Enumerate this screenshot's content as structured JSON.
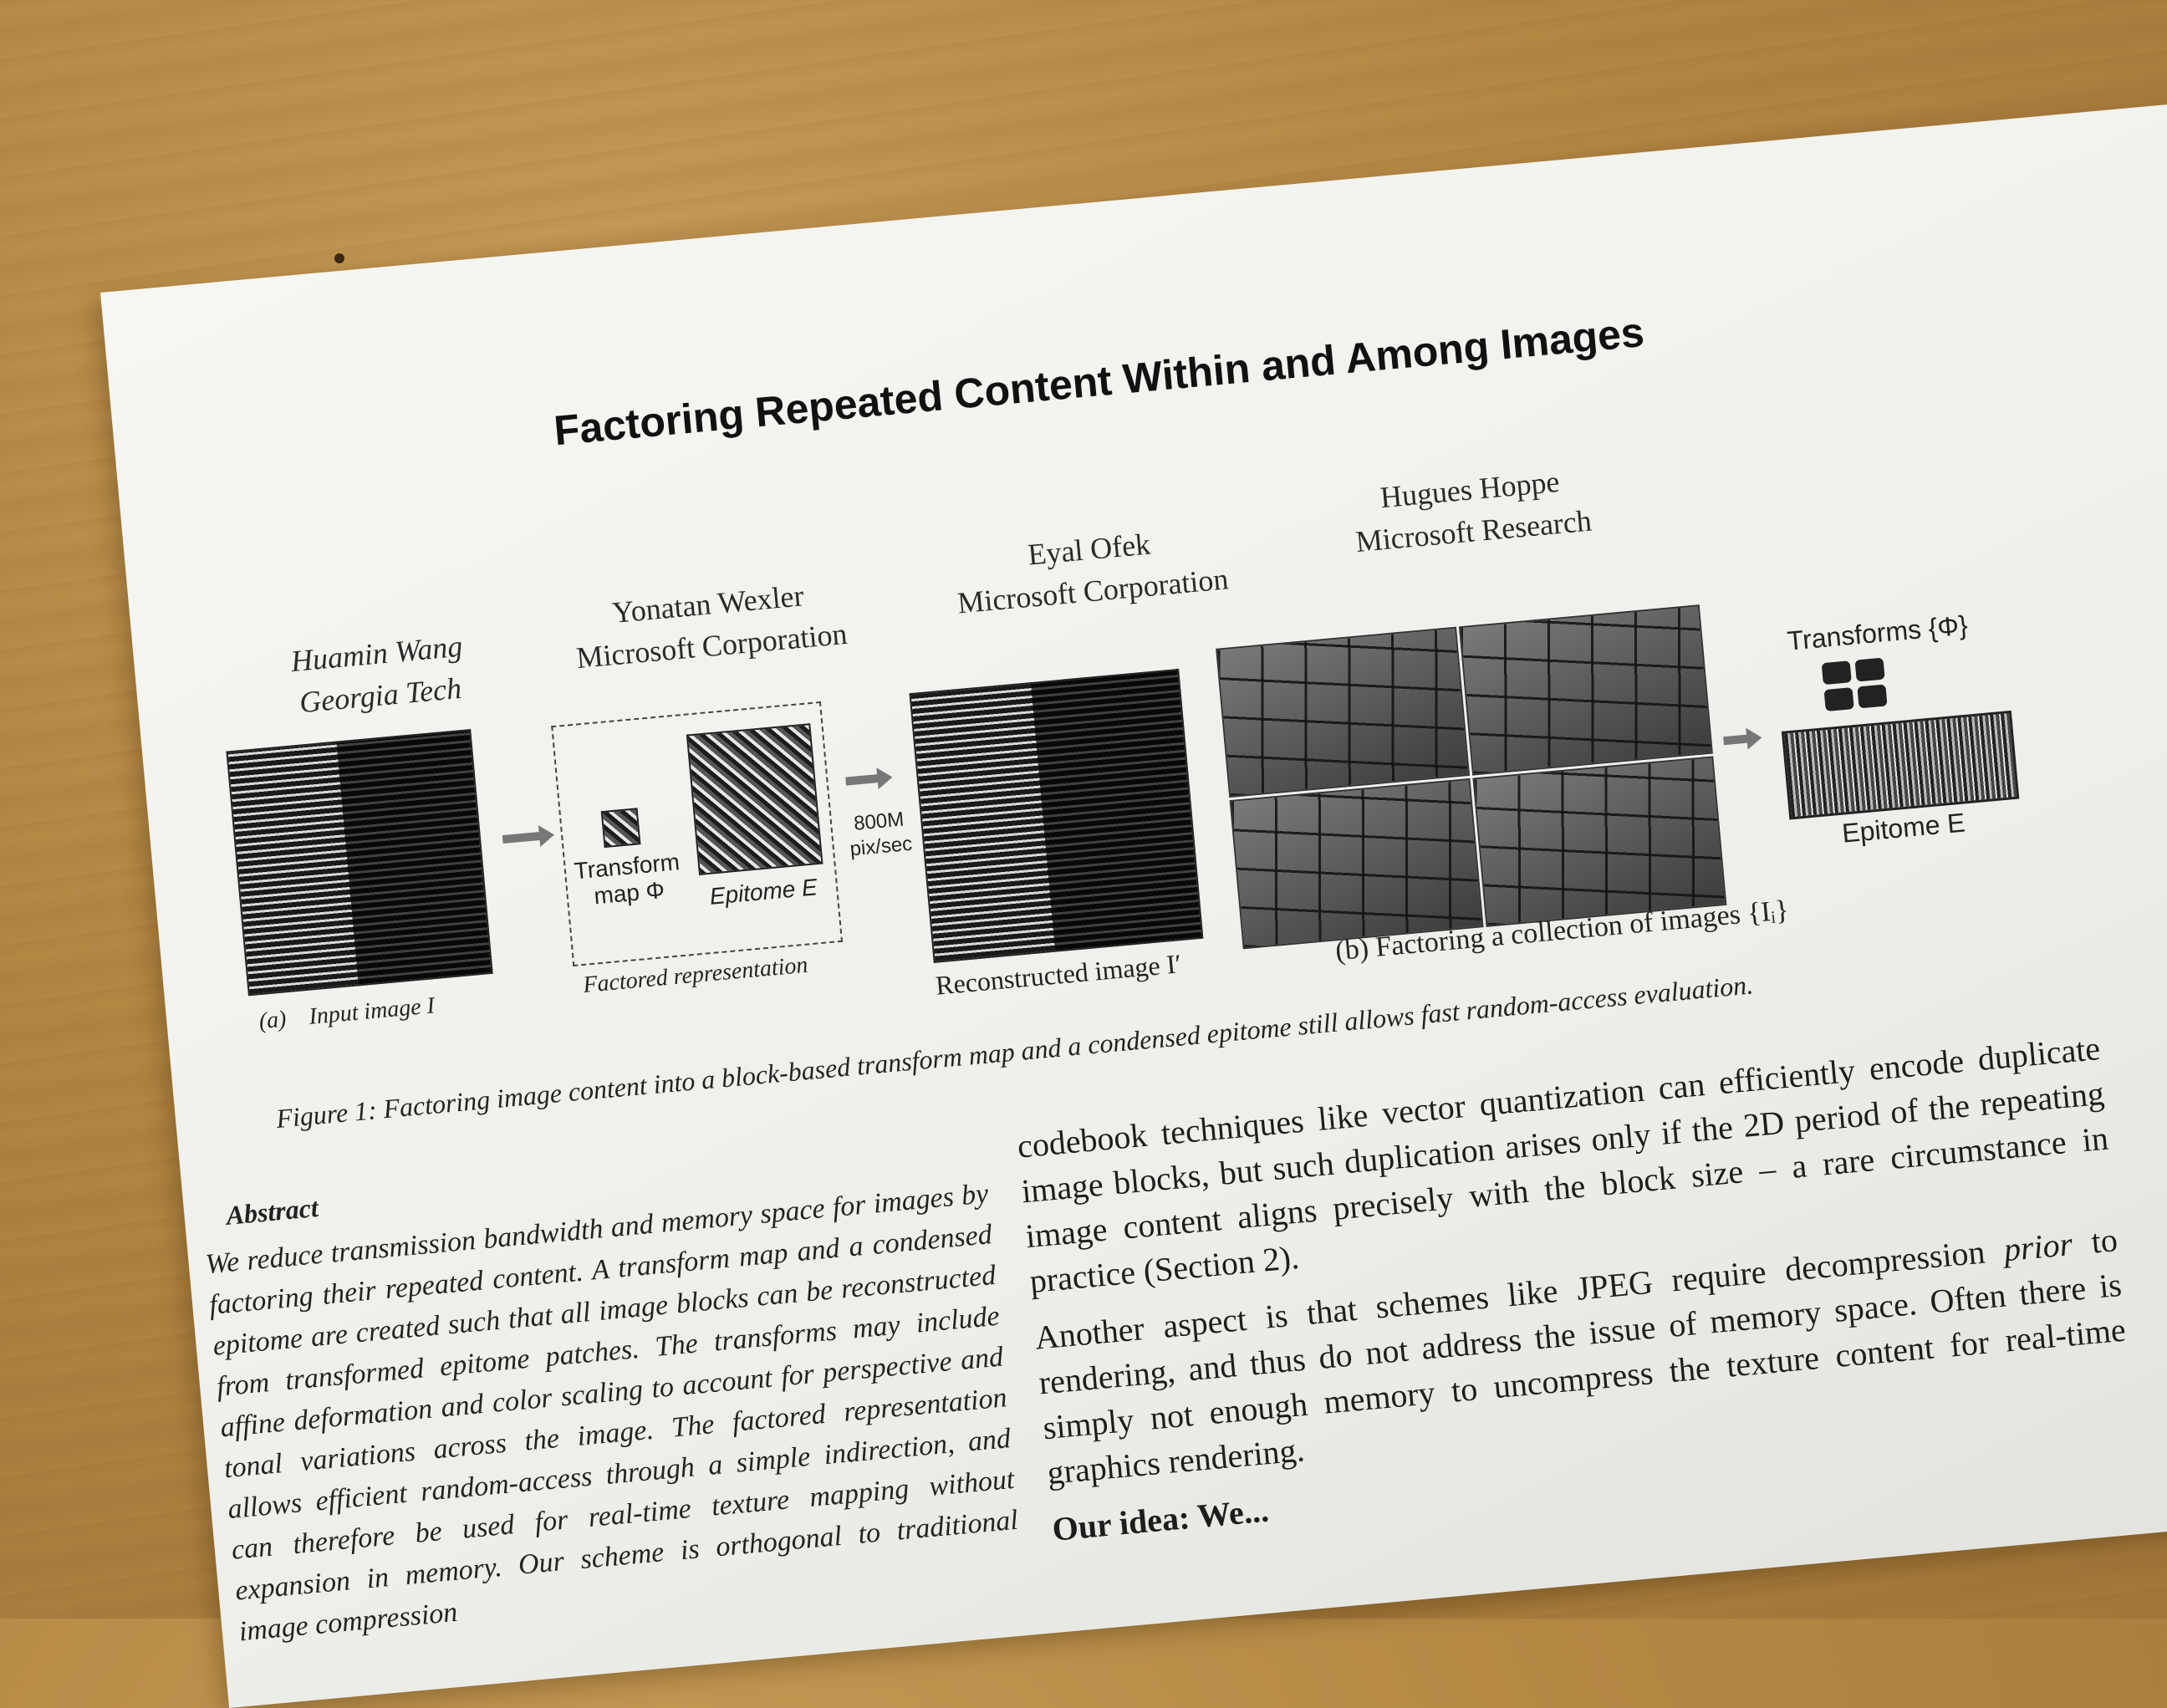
{
  "paper": {
    "title": "Factoring Repeated Content Within and Among Images",
    "authors": [
      {
        "name": "Huamin Wang",
        "affiliation": "Georgia Tech"
      },
      {
        "name": "Yonatan Wexler",
        "affiliation": "Microsoft Corporation"
      },
      {
        "name": "Eyal Ofek",
        "affiliation": "Microsoft Corporation"
      },
      {
        "name": "Hugues Hoppe",
        "affiliation": "Microsoft Research"
      }
    ]
  },
  "figure": {
    "transform_label": "Transform\nmap Φ",
    "epitome_label": "Epitome E",
    "speed_label": "800M\npix/sec",
    "transforms_label": "Transforms {Φ}",
    "epitome_b_label": "Epitome E",
    "sub_a_tag": "(a)",
    "sub_a_label": "Input image I",
    "sub_factored": "Factored representation",
    "sub_recon": "Reconstructed image I′",
    "sub_b": "(b) Factoring a collection of images {Iᵢ}",
    "caption": "Figure 1: Factoring image content into a block-based transform map and a condensed epitome still allows fast random-access evaluation."
  },
  "abstract": {
    "heading": "Abstract",
    "text": "We reduce transmission bandwidth and memory space for images by factoring their repeated content. A transform map and a condensed epitome are created such that all image blocks can be reconstructed from transformed epitome patches. The transforms may include affine deformation and color scaling to account for perspective and tonal variations across the image. The factored representation allows efficient random-access through a simple indirection, and can therefore be used for real-time texture mapping without expansion in memory. Our scheme is orthogonal to traditional image compression"
  },
  "body": {
    "p1": "codebook techniques like vector quantization can efficiently encode duplicate image blocks, but such duplication arises only if the 2D period of the repeating image content aligns precisely with the block size – a rare circumstance in practice (Section 2).",
    "p2_pre": "Another aspect is that schemes like JPEG require decompression",
    "p2_it": "prior",
    "p2_post": "to rendering, and thus do not address the issue of memory space. Often there is simply not enough memory to uncompress the texture content for real-time graphics rendering.",
    "p3": "Our idea: We..."
  }
}
